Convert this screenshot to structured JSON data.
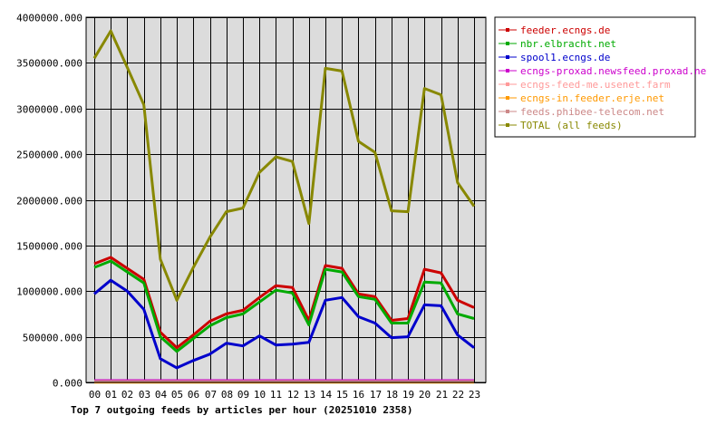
{
  "chart_data": {
    "type": "line",
    "title": "Top 7 outgoing feeds by articles per hour (20251010 2358)",
    "xlabel": "",
    "ylabel": "",
    "x": [
      "00",
      "01",
      "02",
      "03",
      "04",
      "05",
      "06",
      "07",
      "08",
      "09",
      "10",
      "11",
      "12",
      "13",
      "14",
      "15",
      "16",
      "17",
      "18",
      "19",
      "20",
      "21",
      "22",
      "23"
    ],
    "ylim": [
      0,
      4000000
    ],
    "yticks": [
      0,
      500000,
      1000000,
      1500000,
      2000000,
      2500000,
      3000000,
      3500000,
      4000000
    ],
    "ytick_labels": [
      "0.000",
      "500000.000",
      "1000000.000",
      "1500000.000",
      "2000000.000",
      "2500000.000",
      "3000000.000",
      "3500000.000",
      "4000000.000"
    ],
    "grid": true,
    "legend_position": "right",
    "series": [
      {
        "name": "feeder.ecngs.de",
        "color": "#cc0000",
        "values": [
          1300000,
          1370000,
          1250000,
          1130000,
          550000,
          380000,
          520000,
          670000,
          750000,
          790000,
          930000,
          1060000,
          1040000,
          680000,
          1280000,
          1250000,
          970000,
          940000,
          680000,
          700000,
          1240000,
          1200000,
          900000,
          820000
        ]
      },
      {
        "name": "nbr.elbracht.net",
        "color": "#00aa00",
        "values": [
          1260000,
          1330000,
          1210000,
          1090000,
          500000,
          340000,
          480000,
          620000,
          710000,
          750000,
          880000,
          1010000,
          980000,
          630000,
          1240000,
          1210000,
          940000,
          910000,
          650000,
          650000,
          1100000,
          1090000,
          750000,
          700000
        ]
      },
      {
        "name": "spool1.ecngs.de",
        "color": "#0000cc",
        "values": [
          970000,
          1120000,
          1000000,
          800000,
          260000,
          160000,
          240000,
          310000,
          430000,
          400000,
          510000,
          410000,
          420000,
          440000,
          900000,
          930000,
          720000,
          650000,
          490000,
          500000,
          850000,
          840000,
          520000,
          380000
        ]
      },
      {
        "name": "ecngs-proxad.newsfeed.proxad.net",
        "color": "#cc00cc",
        "values": [
          20000,
          20000,
          20000,
          20000,
          20000,
          20000,
          20000,
          20000,
          20000,
          20000,
          20000,
          20000,
          20000,
          20000,
          20000,
          20000,
          20000,
          20000,
          20000,
          20000,
          20000,
          20000,
          20000,
          20000
        ]
      },
      {
        "name": "ecngs-feed-me.usenet.farm",
        "color": "#ff9999",
        "values": [
          5000,
          5000,
          5000,
          5000,
          5000,
          5000,
          5000,
          5000,
          5000,
          5000,
          5000,
          5000,
          5000,
          5000,
          5000,
          5000,
          5000,
          5000,
          5000,
          5000,
          5000,
          5000,
          5000,
          5000
        ]
      },
      {
        "name": "ecngs-in.feeder.erje.net",
        "color": "#ff9900",
        "values": [
          3000,
          3000,
          3000,
          3000,
          3000,
          3000,
          3000,
          3000,
          3000,
          3000,
          3000,
          3000,
          3000,
          3000,
          3000,
          3000,
          3000,
          3000,
          3000,
          3000,
          3000,
          3000,
          3000,
          3000
        ]
      },
      {
        "name": "feeds.phibee-telecom.net",
        "color": "#cc8888",
        "values": [
          10000,
          10000,
          10000,
          10000,
          10000,
          10000,
          10000,
          10000,
          10000,
          10000,
          10000,
          10000,
          10000,
          10000,
          10000,
          10000,
          10000,
          10000,
          10000,
          10000,
          10000,
          10000,
          10000,
          10000
        ]
      },
      {
        "name": "TOTAL (all feeds)",
        "color": "#888800",
        "values": [
          3550000,
          3850000,
          3450000,
          3040000,
          1350000,
          900000,
          1260000,
          1590000,
          1870000,
          1910000,
          2300000,
          2470000,
          2420000,
          1740000,
          3440000,
          3410000,
          2640000,
          2520000,
          1880000,
          1870000,
          3220000,
          3150000,
          2190000,
          1930000
        ]
      }
    ]
  }
}
